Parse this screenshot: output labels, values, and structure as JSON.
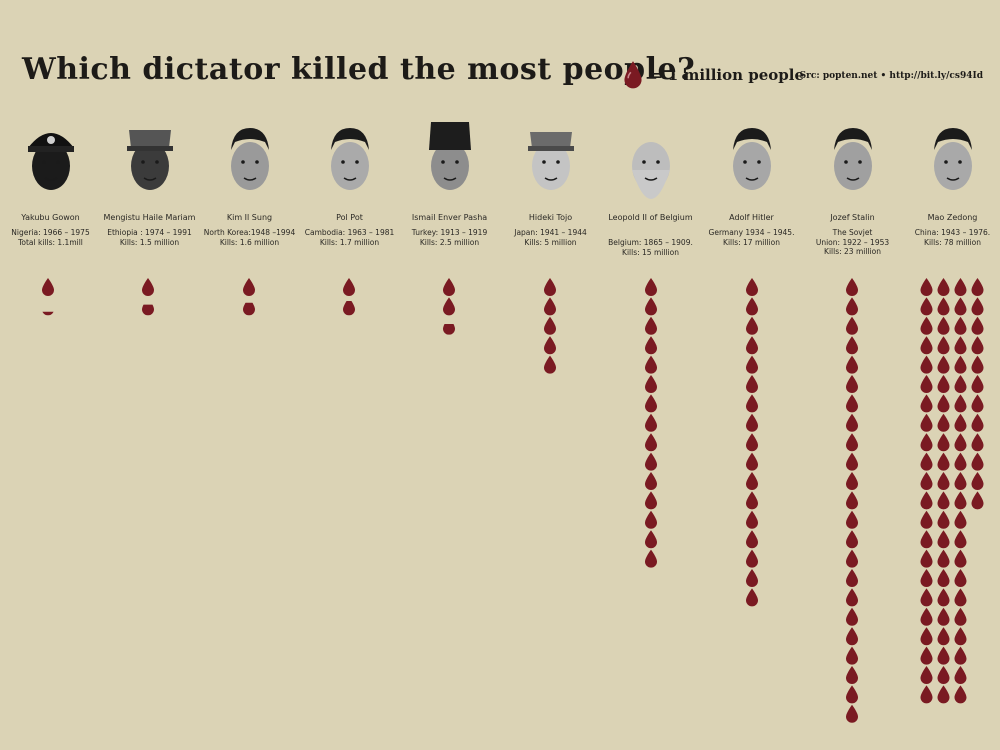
{
  "title": "Which dictator killed the most people?",
  "legend": {
    "label": "= 1 million people",
    "icon": "blood-drop-icon"
  },
  "source": "Src: popten.net • http://bit.ly/cs94Id",
  "colors": {
    "background": "#dbd3b5",
    "drop": "#7a1a22"
  },
  "chart_data": {
    "type": "pictograph",
    "unit": "1 million people",
    "categories": [
      "Yakubu Gowon",
      "Mengistu Haile Mariam",
      "Kim Il Sung",
      "Pol Pot",
      "Ismail Enver Pasha",
      "Hideki Tojo",
      "Leopold II of Belgium",
      "Adolf Hitler",
      "Jozef Stalin",
      "Mao Zedong"
    ],
    "values": [
      1.1,
      1.5,
      1.6,
      1.7,
      2.5,
      5,
      15,
      17,
      23,
      78
    ]
  },
  "dictators": [
    {
      "name": "Yakubu Gowon",
      "info": "Nigeria: 1966 – 1975\nTotal kills: 1.1mill"
    },
    {
      "name": "Mengistu Haile Mariam",
      "info": "Ethiopia : 1974 – 1991\nKills: 1.5 million"
    },
    {
      "name": "Kim Il Sung",
      "info": "North Korea:1948 –1994\nKills: 1.6 million"
    },
    {
      "name": "Pol Pot",
      "info": "Cambodia: 1963 – 1981\nKills: 1.7 million"
    },
    {
      "name": "Ismail Enver Pasha",
      "info": "Turkey: 1913 – 1919\nKills: 2.5 million"
    },
    {
      "name": "Hideki Tojo",
      "info": "Japan: 1941 – 1944\nKills: 5 million"
    },
    {
      "name": "Leopold II of Belgium",
      "info": "Belgium: 1865 – 1909.\nKills: 15 million"
    },
    {
      "name": "Adolf Hitler",
      "info": "Germany 1934 – 1945.\nKills: 17 million"
    },
    {
      "name": "Jozef Stalin",
      "info": "The Sovjet\nUnion: 1922 – 1953\nKills: 23 million"
    },
    {
      "name": "Mao Zedong",
      "info": "China: 1943 – 1976.\nKills: 78 million"
    }
  ]
}
